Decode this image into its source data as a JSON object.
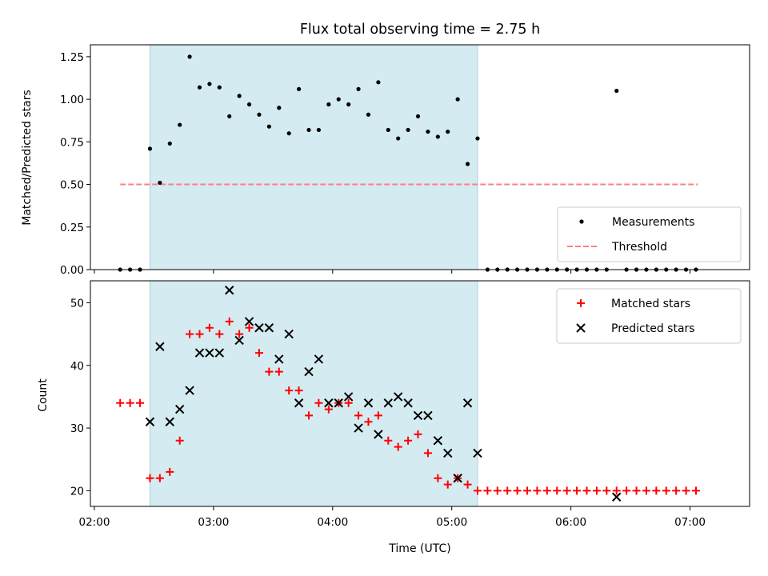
{
  "chart_data": {
    "type": "scatter",
    "title": "Flux total observing time = 2.75 h",
    "xlabel": "Time (UTC)",
    "x_ticks": [
      "02:00",
      "03:00",
      "04:00",
      "05:00",
      "06:00",
      "07:00"
    ],
    "x_range": [
      "01:58",
      "07:30"
    ],
    "shaded_region": {
      "start": "02:28",
      "end": "05:13",
      "color": "#d4ebf1"
    },
    "panels": [
      {
        "id": "ratio",
        "ylabel": "Matched/Predicted stars",
        "ylim": [
          0.0,
          1.32
        ],
        "yticks": [
          "0.00",
          "0.25",
          "0.50",
          "0.75",
          "1.00",
          "1.25"
        ],
        "legend_position": "lower right",
        "threshold": {
          "name": "Threshold",
          "value": 0.5,
          "x_start": "02:13",
          "x_end": "07:04",
          "color": "#ff8080"
        },
        "series": [
          {
            "name": "Measurements",
            "marker": "dot",
            "color": "#000000",
            "points": [
              [
                "02:13",
                0.0
              ],
              [
                "02:18",
                0.0
              ],
              [
                "02:23",
                0.0
              ],
              [
                "02:28",
                0.71
              ],
              [
                "02:33",
                0.51
              ],
              [
                "02:38",
                0.74
              ],
              [
                "02:43",
                0.85
              ],
              [
                "02:48",
                1.25
              ],
              [
                "02:53",
                1.07
              ],
              [
                "02:58",
                1.09
              ],
              [
                "03:03",
                1.07
              ],
              [
                "03:08",
                0.9
              ],
              [
                "03:13",
                1.02
              ],
              [
                "03:18",
                0.97
              ],
              [
                "03:23",
                0.91
              ],
              [
                "03:28",
                0.84
              ],
              [
                "03:33",
                0.95
              ],
              [
                "03:38",
                0.8
              ],
              [
                "03:43",
                1.06
              ],
              [
                "03:48",
                0.82
              ],
              [
                "03:53",
                0.82
              ],
              [
                "03:58",
                0.97
              ],
              [
                "04:03",
                1.0
              ],
              [
                "04:08",
                0.97
              ],
              [
                "04:13",
                1.06
              ],
              [
                "04:18",
                0.91
              ],
              [
                "04:23",
                1.1
              ],
              [
                "04:28",
                0.82
              ],
              [
                "04:33",
                0.77
              ],
              [
                "04:38",
                0.82
              ],
              [
                "04:43",
                0.9
              ],
              [
                "04:48",
                0.81
              ],
              [
                "04:53",
                0.78
              ],
              [
                "04:58",
                0.81
              ],
              [
                "05:03",
                1.0
              ],
              [
                "05:08",
                0.62
              ],
              [
                "05:13",
                0.77
              ],
              [
                "05:18",
                0.0
              ],
              [
                "05:23",
                0.0
              ],
              [
                "05:28",
                0.0
              ],
              [
                "05:33",
                0.0
              ],
              [
                "05:38",
                0.0
              ],
              [
                "05:43",
                0.0
              ],
              [
                "05:48",
                0.0
              ],
              [
                "05:53",
                0.0
              ],
              [
                "05:58",
                0.0
              ],
              [
                "06:03",
                0.0
              ],
              [
                "06:08",
                0.0
              ],
              [
                "06:13",
                0.0
              ],
              [
                "06:18",
                0.0
              ],
              [
                "06:23",
                1.05
              ],
              [
                "06:28",
                0.0
              ],
              [
                "06:33",
                0.0
              ],
              [
                "06:38",
                0.0
              ],
              [
                "06:43",
                0.0
              ],
              [
                "06:48",
                0.0
              ],
              [
                "06:53",
                0.0
              ],
              [
                "06:58",
                0.0
              ],
              [
                "07:03",
                0.0
              ]
            ]
          }
        ]
      },
      {
        "id": "count",
        "ylabel": "Count",
        "ylim": [
          17.5,
          53.5
        ],
        "yticks": [
          "20",
          "30",
          "40",
          "50"
        ],
        "legend_position": "upper right",
        "series": [
          {
            "name": "Matched stars",
            "marker": "plus",
            "color": "#ff0000",
            "points": [
              [
                "02:13",
                34
              ],
              [
                "02:18",
                34
              ],
              [
                "02:23",
                34
              ],
              [
                "02:28",
                22
              ],
              [
                "02:33",
                22
              ],
              [
                "02:38",
                23
              ],
              [
                "02:43",
                28
              ],
              [
                "02:48",
                45
              ],
              [
                "02:53",
                45
              ],
              [
                "02:58",
                46
              ],
              [
                "03:03",
                45
              ],
              [
                "03:08",
                47
              ],
              [
                "03:13",
                45
              ],
              [
                "03:18",
                46
              ],
              [
                "03:23",
                42
              ],
              [
                "03:28",
                39
              ],
              [
                "03:33",
                39
              ],
              [
                "03:38",
                36
              ],
              [
                "03:43",
                36
              ],
              [
                "03:48",
                32
              ],
              [
                "03:53",
                34
              ],
              [
                "03:58",
                33
              ],
              [
                "04:03",
                34
              ],
              [
                "04:08",
                34
              ],
              [
                "04:13",
                32
              ],
              [
                "04:18",
                31
              ],
              [
                "04:23",
                32
              ],
              [
                "04:28",
                28
              ],
              [
                "04:33",
                27
              ],
              [
                "04:38",
                28
              ],
              [
                "04:43",
                29
              ],
              [
                "04:48",
                26
              ],
              [
                "04:53",
                22
              ],
              [
                "04:58",
                21
              ],
              [
                "05:03",
                22
              ],
              [
                "05:08",
                21
              ],
              [
                "05:13",
                20
              ],
              [
                "05:18",
                20
              ],
              [
                "05:23",
                20
              ],
              [
                "05:28",
                20
              ],
              [
                "05:33",
                20
              ],
              [
                "05:38",
                20
              ],
              [
                "05:43",
                20
              ],
              [
                "05:48",
                20
              ],
              [
                "05:53",
                20
              ],
              [
                "05:58",
                20
              ],
              [
                "06:03",
                20
              ],
              [
                "06:08",
                20
              ],
              [
                "06:13",
                20
              ],
              [
                "06:18",
                20
              ],
              [
                "06:23",
                20
              ],
              [
                "06:28",
                20
              ],
              [
                "06:33",
                20
              ],
              [
                "06:38",
                20
              ],
              [
                "06:43",
                20
              ],
              [
                "06:48",
                20
              ],
              [
                "06:53",
                20
              ],
              [
                "06:58",
                20
              ],
              [
                "07:03",
                20
              ]
            ]
          },
          {
            "name": "Predicted stars",
            "marker": "x",
            "color": "#000000",
            "points": [
              [
                "02:28",
                31
              ],
              [
                "02:33",
                43
              ],
              [
                "02:38",
                31
              ],
              [
                "02:43",
                33
              ],
              [
                "02:48",
                36
              ],
              [
                "02:53",
                42
              ],
              [
                "02:58",
                42
              ],
              [
                "03:03",
                42
              ],
              [
                "03:08",
                52
              ],
              [
                "03:13",
                44
              ],
              [
                "03:18",
                47
              ],
              [
                "03:23",
                46
              ],
              [
                "03:28",
                46
              ],
              [
                "03:33",
                41
              ],
              [
                "03:38",
                45
              ],
              [
                "03:43",
                34
              ],
              [
                "03:48",
                39
              ],
              [
                "03:53",
                41
              ],
              [
                "03:58",
                34
              ],
              [
                "04:03",
                34
              ],
              [
                "04:08",
                35
              ],
              [
                "04:13",
                30
              ],
              [
                "04:18",
                34
              ],
              [
                "04:23",
                29
              ],
              [
                "04:28",
                34
              ],
              [
                "04:33",
                35
              ],
              [
                "04:38",
                34
              ],
              [
                "04:43",
                32
              ],
              [
                "04:48",
                32
              ],
              [
                "04:53",
                28
              ],
              [
                "04:58",
                26
              ],
              [
                "05:03",
                22
              ],
              [
                "05:08",
                34
              ],
              [
                "05:13",
                26
              ],
              [
                "06:23",
                19
              ]
            ]
          }
        ]
      }
    ]
  }
}
